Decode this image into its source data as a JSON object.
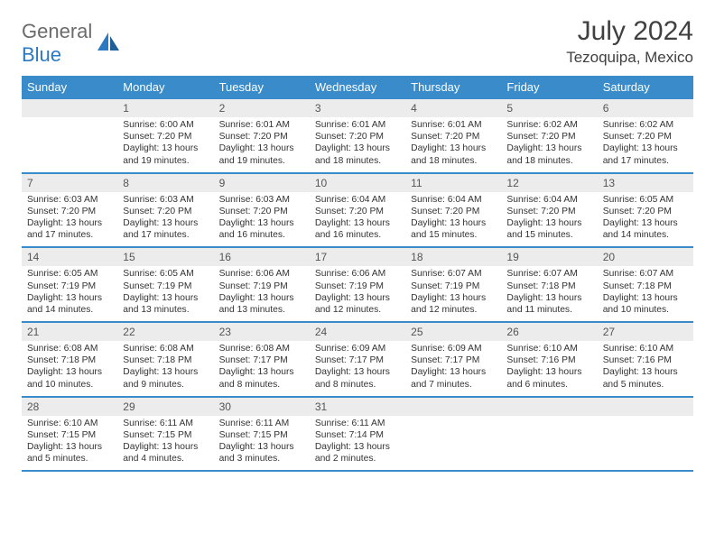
{
  "brand": {
    "name_gray": "General",
    "name_blue": "Blue"
  },
  "title": "July 2024",
  "location": "Tezoquipa, Mexico",
  "colors": {
    "header_bg": "#3a8bc9",
    "header_text": "#ffffff",
    "daynum_bg": "#ececec",
    "week_border": "#3a8bc9",
    "title_color": "#404040",
    "body_text": "#333333",
    "logo_gray": "#6b6b6b",
    "logo_blue": "#2b79c2"
  },
  "weekdays": [
    "Sunday",
    "Monday",
    "Tuesday",
    "Wednesday",
    "Thursday",
    "Friday",
    "Saturday"
  ],
  "weeks": [
    [
      null,
      {
        "n": "1",
        "sunrise": "6:00 AM",
        "sunset": "7:20 PM",
        "dl1": "Daylight: 13 hours",
        "dl2": "and 19 minutes."
      },
      {
        "n": "2",
        "sunrise": "6:01 AM",
        "sunset": "7:20 PM",
        "dl1": "Daylight: 13 hours",
        "dl2": "and 19 minutes."
      },
      {
        "n": "3",
        "sunrise": "6:01 AM",
        "sunset": "7:20 PM",
        "dl1": "Daylight: 13 hours",
        "dl2": "and 18 minutes."
      },
      {
        "n": "4",
        "sunrise": "6:01 AM",
        "sunset": "7:20 PM",
        "dl1": "Daylight: 13 hours",
        "dl2": "and 18 minutes."
      },
      {
        "n": "5",
        "sunrise": "6:02 AM",
        "sunset": "7:20 PM",
        "dl1": "Daylight: 13 hours",
        "dl2": "and 18 minutes."
      },
      {
        "n": "6",
        "sunrise": "6:02 AM",
        "sunset": "7:20 PM",
        "dl1": "Daylight: 13 hours",
        "dl2": "and 17 minutes."
      }
    ],
    [
      {
        "n": "7",
        "sunrise": "6:03 AM",
        "sunset": "7:20 PM",
        "dl1": "Daylight: 13 hours",
        "dl2": "and 17 minutes."
      },
      {
        "n": "8",
        "sunrise": "6:03 AM",
        "sunset": "7:20 PM",
        "dl1": "Daylight: 13 hours",
        "dl2": "and 17 minutes."
      },
      {
        "n": "9",
        "sunrise": "6:03 AM",
        "sunset": "7:20 PM",
        "dl1": "Daylight: 13 hours",
        "dl2": "and 16 minutes."
      },
      {
        "n": "10",
        "sunrise": "6:04 AM",
        "sunset": "7:20 PM",
        "dl1": "Daylight: 13 hours",
        "dl2": "and 16 minutes."
      },
      {
        "n": "11",
        "sunrise": "6:04 AM",
        "sunset": "7:20 PM",
        "dl1": "Daylight: 13 hours",
        "dl2": "and 15 minutes."
      },
      {
        "n": "12",
        "sunrise": "6:04 AM",
        "sunset": "7:20 PM",
        "dl1": "Daylight: 13 hours",
        "dl2": "and 15 minutes."
      },
      {
        "n": "13",
        "sunrise": "6:05 AM",
        "sunset": "7:20 PM",
        "dl1": "Daylight: 13 hours",
        "dl2": "and 14 minutes."
      }
    ],
    [
      {
        "n": "14",
        "sunrise": "6:05 AM",
        "sunset": "7:19 PM",
        "dl1": "Daylight: 13 hours",
        "dl2": "and 14 minutes."
      },
      {
        "n": "15",
        "sunrise": "6:05 AM",
        "sunset": "7:19 PM",
        "dl1": "Daylight: 13 hours",
        "dl2": "and 13 minutes."
      },
      {
        "n": "16",
        "sunrise": "6:06 AM",
        "sunset": "7:19 PM",
        "dl1": "Daylight: 13 hours",
        "dl2": "and 13 minutes."
      },
      {
        "n": "17",
        "sunrise": "6:06 AM",
        "sunset": "7:19 PM",
        "dl1": "Daylight: 13 hours",
        "dl2": "and 12 minutes."
      },
      {
        "n": "18",
        "sunrise": "6:07 AM",
        "sunset": "7:19 PM",
        "dl1": "Daylight: 13 hours",
        "dl2": "and 12 minutes."
      },
      {
        "n": "19",
        "sunrise": "6:07 AM",
        "sunset": "7:18 PM",
        "dl1": "Daylight: 13 hours",
        "dl2": "and 11 minutes."
      },
      {
        "n": "20",
        "sunrise": "6:07 AM",
        "sunset": "7:18 PM",
        "dl1": "Daylight: 13 hours",
        "dl2": "and 10 minutes."
      }
    ],
    [
      {
        "n": "21",
        "sunrise": "6:08 AM",
        "sunset": "7:18 PM",
        "dl1": "Daylight: 13 hours",
        "dl2": "and 10 minutes."
      },
      {
        "n": "22",
        "sunrise": "6:08 AM",
        "sunset": "7:18 PM",
        "dl1": "Daylight: 13 hours",
        "dl2": "and 9 minutes."
      },
      {
        "n": "23",
        "sunrise": "6:08 AM",
        "sunset": "7:17 PM",
        "dl1": "Daylight: 13 hours",
        "dl2": "and 8 minutes."
      },
      {
        "n": "24",
        "sunrise": "6:09 AM",
        "sunset": "7:17 PM",
        "dl1": "Daylight: 13 hours",
        "dl2": "and 8 minutes."
      },
      {
        "n": "25",
        "sunrise": "6:09 AM",
        "sunset": "7:17 PM",
        "dl1": "Daylight: 13 hours",
        "dl2": "and 7 minutes."
      },
      {
        "n": "26",
        "sunrise": "6:10 AM",
        "sunset": "7:16 PM",
        "dl1": "Daylight: 13 hours",
        "dl2": "and 6 minutes."
      },
      {
        "n": "27",
        "sunrise": "6:10 AM",
        "sunset": "7:16 PM",
        "dl1": "Daylight: 13 hours",
        "dl2": "and 5 minutes."
      }
    ],
    [
      {
        "n": "28",
        "sunrise": "6:10 AM",
        "sunset": "7:15 PM",
        "dl1": "Daylight: 13 hours",
        "dl2": "and 5 minutes."
      },
      {
        "n": "29",
        "sunrise": "6:11 AM",
        "sunset": "7:15 PM",
        "dl1": "Daylight: 13 hours",
        "dl2": "and 4 minutes."
      },
      {
        "n": "30",
        "sunrise": "6:11 AM",
        "sunset": "7:15 PM",
        "dl1": "Daylight: 13 hours",
        "dl2": "and 3 minutes."
      },
      {
        "n": "31",
        "sunrise": "6:11 AM",
        "sunset": "7:14 PM",
        "dl1": "Daylight: 13 hours",
        "dl2": "and 2 minutes."
      },
      null,
      null,
      null
    ]
  ]
}
